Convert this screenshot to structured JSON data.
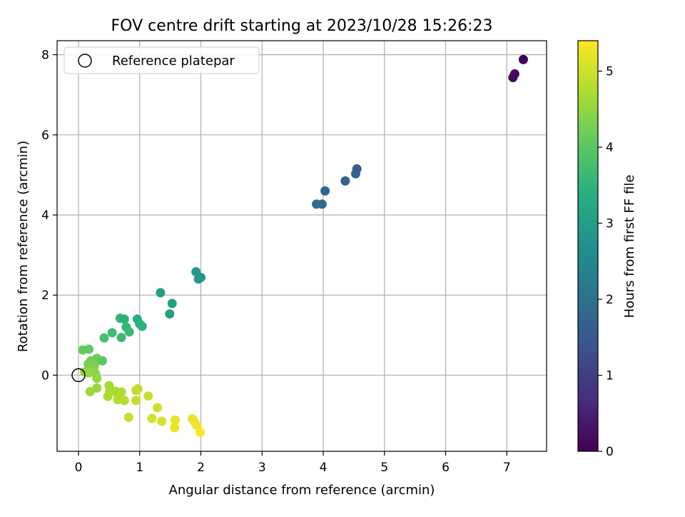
{
  "chart_data": {
    "type": "scatter",
    "title": "FOV centre drift starting at 2023/10/28 15:26:23",
    "xlabel": "Angular distance from reference (arcmin)",
    "ylabel": "Rotation from reference (arcmin)",
    "xlim": [
      -0.35,
      7.65
    ],
    "ylim": [
      -1.9,
      8.35
    ],
    "xticks": [
      0,
      1,
      2,
      3,
      4,
      5,
      6,
      7
    ],
    "yticks": [
      0,
      2,
      4,
      6,
      8
    ],
    "grid": true,
    "legend": {
      "position": "top-left",
      "entries": [
        "Reference platepar"
      ]
    },
    "reference_point": {
      "x": 0,
      "y": 0,
      "label": "Reference platepar"
    },
    "colorbar": {
      "label": "Hours from first FF file",
      "colormap": "viridis",
      "range": [
        0,
        5.4
      ],
      "ticks": [
        0,
        1,
        2,
        3,
        4,
        5
      ]
    },
    "points": [
      {
        "x": 7.27,
        "y": 7.88,
        "c": 0.0
      },
      {
        "x": 7.13,
        "y": 7.52,
        "c": 0.08
      },
      {
        "x": 7.1,
        "y": 7.43,
        "c": 0.12
      },
      {
        "x": 4.55,
        "y": 5.15,
        "c": 1.58
      },
      {
        "x": 4.53,
        "y": 5.03,
        "c": 1.62
      },
      {
        "x": 4.36,
        "y": 4.85,
        "c": 1.68
      },
      {
        "x": 4.03,
        "y": 4.6,
        "c": 1.75
      },
      {
        "x": 3.98,
        "y": 4.27,
        "c": 1.8
      },
      {
        "x": 3.89,
        "y": 4.27,
        "c": 1.85
      },
      {
        "x": 1.92,
        "y": 2.58,
        "c": 2.85
      },
      {
        "x": 2.0,
        "y": 2.44,
        "c": 2.88
      },
      {
        "x": 1.96,
        "y": 2.4,
        "c": 2.9
      },
      {
        "x": 1.34,
        "y": 2.06,
        "c": 2.95
      },
      {
        "x": 1.53,
        "y": 1.79,
        "c": 3.0
      },
      {
        "x": 1.49,
        "y": 1.53,
        "c": 3.05
      },
      {
        "x": 0.68,
        "y": 1.42,
        "c": 3.5
      },
      {
        "x": 0.75,
        "y": 1.4,
        "c": 3.45
      },
      {
        "x": 0.96,
        "y": 1.4,
        "c": 3.4
      },
      {
        "x": 1.0,
        "y": 1.28,
        "c": 3.42
      },
      {
        "x": 1.04,
        "y": 1.22,
        "c": 3.44
      },
      {
        "x": 0.78,
        "y": 1.2,
        "c": 3.55
      },
      {
        "x": 0.83,
        "y": 1.08,
        "c": 3.6
      },
      {
        "x": 0.55,
        "y": 1.06,
        "c": 3.65
      },
      {
        "x": 0.7,
        "y": 0.94,
        "c": 3.62
      },
      {
        "x": 0.42,
        "y": 0.93,
        "c": 3.8
      },
      {
        "x": 0.07,
        "y": 0.63,
        "c": 4.1
      },
      {
        "x": 0.17,
        "y": 0.65,
        "c": 4.05
      },
      {
        "x": 0.3,
        "y": 0.42,
        "c": 4.15
      },
      {
        "x": 0.39,
        "y": 0.36,
        "c": 4.0
      },
      {
        "x": 0.2,
        "y": 0.36,
        "c": 4.2
      },
      {
        "x": 0.16,
        "y": 0.28,
        "c": 4.25
      },
      {
        "x": 0.26,
        "y": 0.26,
        "c": 4.3
      },
      {
        "x": 0.25,
        "y": 0.18,
        "c": 4.35
      },
      {
        "x": 0.21,
        "y": 0.14,
        "c": 4.4
      },
      {
        "x": 0.1,
        "y": 0.08,
        "c": 4.45
      },
      {
        "x": 0.17,
        "y": 0.06,
        "c": 4.5
      },
      {
        "x": 0.28,
        "y": 0.04,
        "c": 4.45
      },
      {
        "x": 0.3,
        "y": -0.08,
        "c": 4.5
      },
      {
        "x": 0.3,
        "y": -0.32,
        "c": 4.55
      },
      {
        "x": 0.19,
        "y": -0.41,
        "c": 4.6
      },
      {
        "x": 0.5,
        "y": -0.26,
        "c": 4.65
      },
      {
        "x": 0.6,
        "y": -0.4,
        "c": 4.7
      },
      {
        "x": 0.7,
        "y": -0.42,
        "c": 4.72
      },
      {
        "x": 0.51,
        "y": -0.41,
        "c": 4.68
      },
      {
        "x": 0.48,
        "y": -0.53,
        "c": 4.7
      },
      {
        "x": 0.65,
        "y": -0.55,
        "c": 4.75
      },
      {
        "x": 0.64,
        "y": -0.61,
        "c": 4.78
      },
      {
        "x": 0.75,
        "y": -0.63,
        "c": 4.8
      },
      {
        "x": 0.97,
        "y": -0.34,
        "c": 4.85
      },
      {
        "x": 0.94,
        "y": -0.38,
        "c": 4.88
      },
      {
        "x": 0.94,
        "y": -0.63,
        "c": 4.9
      },
      {
        "x": 1.14,
        "y": -0.52,
        "c": 4.92
      },
      {
        "x": 0.82,
        "y": -1.05,
        "c": 4.95
      },
      {
        "x": 1.29,
        "y": -0.81,
        "c": 5.0
      },
      {
        "x": 1.2,
        "y": -1.08,
        "c": 5.05
      },
      {
        "x": 1.36,
        "y": -1.15,
        "c": 5.1
      },
      {
        "x": 1.58,
        "y": -1.12,
        "c": 5.2
      },
      {
        "x": 1.57,
        "y": -1.31,
        "c": 5.25
      },
      {
        "x": 1.86,
        "y": -1.09,
        "c": 5.22
      },
      {
        "x": 1.9,
        "y": -1.17,
        "c": 5.28
      },
      {
        "x": 1.93,
        "y": -1.25,
        "c": 5.3
      },
      {
        "x": 1.99,
        "y": -1.43,
        "c": 5.4
      }
    ]
  }
}
